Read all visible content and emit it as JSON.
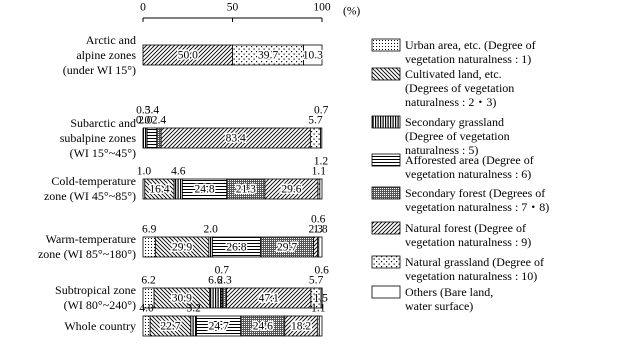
{
  "chart_data": {
    "type": "stacked-barh",
    "x_label": "(%)",
    "xlim": [
      0,
      100
    ],
    "xticks": [
      0,
      50,
      100
    ],
    "categories": [
      "Arctic and\nalpine zones\n(under WI 15°)",
      "Subarctic and\nsubalpine zones\n(WI 15°~45°)",
      "Cold-temperature\nzone (WI 45°~85°)",
      "Warm-temperature\nzone (WI 85°~180°)",
      "Subtropical zone\n(WI 80°~240°)",
      "Whole country"
    ],
    "series": [
      {
        "name": "Urban area, etc. (Degree of\nvegetation naturalness : 1)",
        "color": "#ffffff",
        "pattern": "dots",
        "values": [
          0,
          0,
          1.0,
          6.9,
          6.2,
          4.0
        ],
        "value_labels": [
          null,
          "0.0",
          "1.0",
          "6.9",
          "6.2",
          "4.0"
        ]
      },
      {
        "name": "Cultivated land, etc.\n(Degrees of vegetation\nnaturalness : 2・3)",
        "color": "#ffffff",
        "pattern": "backhatch",
        "values": [
          0,
          0.3,
          16.4,
          29.9,
          30.9,
          22.7
        ],
        "value_labels": [
          null,
          "0.3",
          "16.4",
          "29.9",
          "30.9",
          "22.7"
        ]
      },
      {
        "name": "Secondary grassland\n(Degree of vegetation\nnaturalness : 5)",
        "color": "#ffffff",
        "pattern": "vertical",
        "values": [
          0,
          2.0,
          4.6,
          2.0,
          6.6,
          3.2
        ],
        "value_labels": [
          null,
          "2.0",
          "4.6",
          "2.0",
          "6.6",
          "3.2"
        ]
      },
      {
        "name": "Afforested area (Degree of\nvegetation naturalness : 6)",
        "color": "#ffffff",
        "pattern": "horizontal",
        "values": [
          0,
          5.4,
          24.8,
          26.8,
          0.7,
          24.7
        ],
        "value_labels": [
          null,
          "5.4",
          "24.8",
          "26.8",
          "0.7",
          "24.7"
        ]
      },
      {
        "name": "Secondary forest (Degrees of\nvegetation naturalness : 7・8)",
        "color": "#ffffff",
        "pattern": "densedots",
        "values": [
          0,
          2.4,
          21.3,
          29.7,
          2.3,
          24.6
        ],
        "value_labels": [
          null,
          "2.4",
          "21.3",
          "29.7",
          "2.3",
          "24.6"
        ]
      },
      {
        "name": "Natural forest (Degree of\nvegetation naturalness : 9)",
        "color": "#ffffff",
        "pattern": "hatch",
        "values": [
          50.0,
          83.4,
          29.6,
          2.3,
          47.1,
          18.2
        ],
        "value_labels": [
          "50.0",
          "83.4",
          "29.6",
          "2.3",
          "47.1",
          "18.2"
        ]
      },
      {
        "name": "Natural grassland (Degree of\nvegetation naturalness : 10)",
        "color": "#ffffff",
        "pattern": "sparsedots",
        "values": [
          39.7,
          5.7,
          1.1,
          0.6,
          5.7,
          1.1
        ],
        "value_labels": [
          "39.7",
          "5.7",
          "1.1",
          "0.6",
          "5.7",
          "1.1"
        ]
      },
      {
        "name": "Others (Bare land,\nwater surface)",
        "color": "#ffffff",
        "pattern": "none",
        "values": [
          10.3,
          0.7,
          1.2,
          1.8,
          0.6,
          1.5
        ],
        "value_labels": [
          "10.3",
          "0.7",
          "1.2",
          "1.8",
          "0.6",
          "1.5"
        ]
      }
    ]
  }
}
